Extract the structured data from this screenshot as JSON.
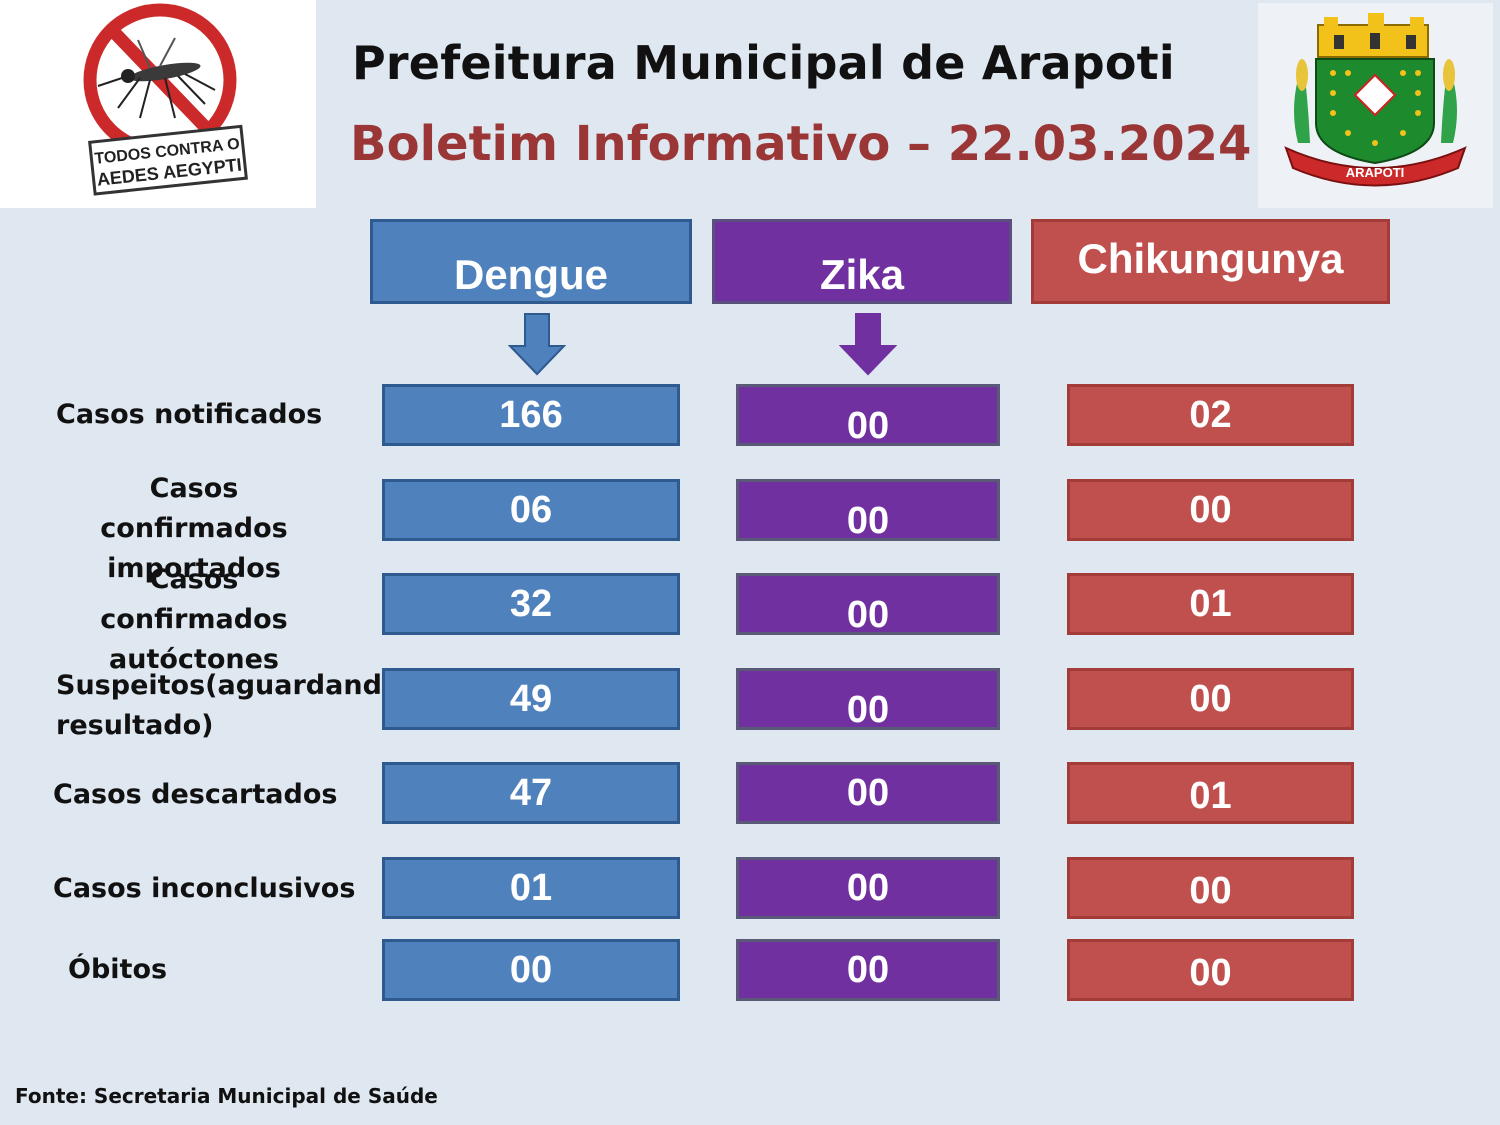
{
  "header": {
    "title": "Prefeitura Municipal de Arapoti",
    "subtitle": "Boletim Informativo – 22.03.2024"
  },
  "logo_left": {
    "text_line1": "TODOS CONTRA O",
    "text_line2": "AEDES AEGYPTI"
  },
  "logo_right": {
    "text": "ARAPOTI"
  },
  "columns": [
    {
      "name": "Dengue",
      "color": "#4f81bd"
    },
    {
      "name": "Zika",
      "color": "#7030a0"
    },
    {
      "name": "Chikungunya",
      "color": "#c0504d"
    }
  ],
  "rows": [
    {
      "label": "Casos notificados",
      "dengue": "166",
      "zika": "00",
      "chik": "02"
    },
    {
      "label_1": "Casos confirmados",
      "label_2": "importados",
      "dengue": "06",
      "zika": "00",
      "chik": "00"
    },
    {
      "label_1": "Casos confirmados",
      "label_2": "autóctones",
      "dengue": "32",
      "zika": "00",
      "chik": "01"
    },
    {
      "label_1": "Suspeitos(aguardando",
      "label_2": "resultado)",
      "dengue": "49",
      "zika": "00",
      "chik": "00"
    },
    {
      "label": "Casos descartados",
      "dengue": "47",
      "zika": "00",
      "chik": "01"
    },
    {
      "label": "Casos inconclusivos",
      "dengue": "01",
      "zika": "00",
      "chik": "00"
    },
    {
      "label": "Óbitos",
      "dengue": "00",
      "zika": "00",
      "chik": "00"
    }
  ],
  "footer": "Fonte: Secretaria Municipal de Saúde"
}
